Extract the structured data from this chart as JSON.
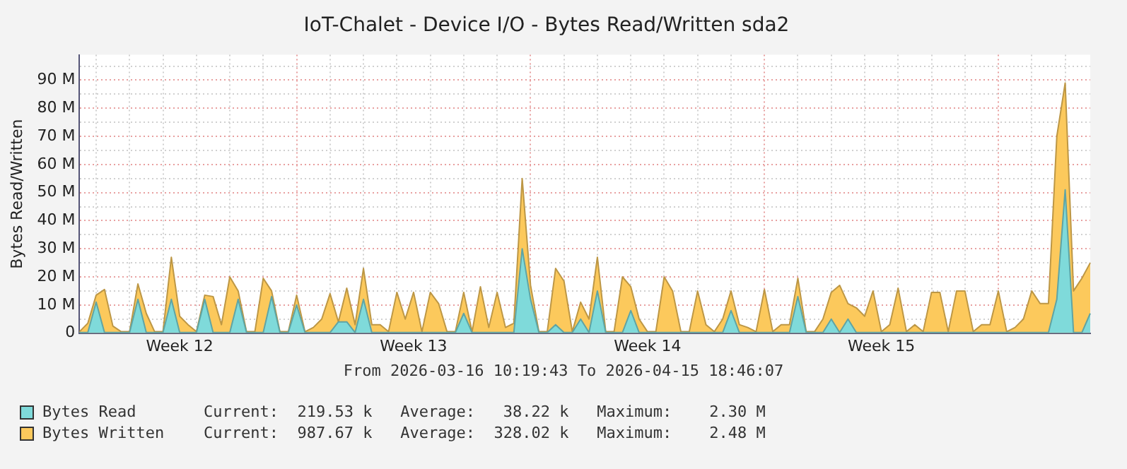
{
  "chart_data": {
    "type": "area",
    "title": "IoT-Chalet - Device I/O - Bytes Read/Written sda2",
    "ylabel": "Bytes Read/Written",
    "annotations": [
      "From 2026-03-16 10:19:43 To 2026-04-15 18:46:07",
      "Current:  219.53 k   Average:   38.22 k   Maximum:    2.30 M",
      "Current:  987.67 k   Average:  328.02 k   Maximum:    2.48 M"
    ],
    "categories": [
      null,
      null,
      null,
      null,
      null,
      null,
      null,
      null,
      null,
      null,
      null,
      null,
      "Week 12",
      null,
      null,
      null,
      null,
      null,
      null,
      null,
      null,
      null,
      null,
      null,
      null,
      null,
      null,
      null,
      null,
      null,
      null,
      null,
      null,
      null,
      null,
      null,
      null,
      null,
      null,
      null,
      "Week 13",
      null,
      null,
      null,
      null,
      null,
      null,
      null,
      null,
      null,
      null,
      null,
      null,
      null,
      null,
      null,
      null,
      null,
      null,
      null,
      null,
      null,
      null,
      null,
      null,
      null,
      null,
      null,
      "Week 14",
      null,
      null,
      null,
      null,
      null,
      null,
      null,
      null,
      null,
      null,
      null,
      null,
      null,
      null,
      null,
      null,
      null,
      null,
      null,
      null,
      null,
      null,
      null,
      null,
      null,
      null,
      null,
      "Week 15",
      null,
      null,
      null,
      null,
      null,
      null,
      null,
      null,
      null,
      null,
      null,
      null,
      null,
      null,
      null,
      null,
      null,
      null,
      null,
      null,
      null,
      null,
      null,
      null,
      null
    ],
    "ylim": [
      0,
      99
    ],
    "yticks": [
      0,
      {
        "value": 5,
        "label": null
      },
      {
        "value": 10,
        "label": "10 M"
      },
      {
        "value": 15,
        "label": null
      },
      {
        "value": 20,
        "label": "20 M"
      },
      {
        "value": 25,
        "label": null
      },
      {
        "value": 30,
        "label": "30 M"
      },
      {
        "value": 35,
        "label": null
      },
      {
        "value": 40,
        "label": "40 M"
      },
      {
        "value": 45,
        "label": null
      },
      {
        "value": 50,
        "label": "50 M"
      },
      {
        "value": 55,
        "label": null
      },
      {
        "value": 60,
        "label": "60 M"
      },
      {
        "value": 65,
        "label": null
      },
      {
        "value": 70,
        "label": "70 M"
      },
      {
        "value": 75,
        "label": null
      },
      {
        "value": 80,
        "label": "80 M"
      },
      {
        "value": 85,
        "label": null
      },
      {
        "value": 90,
        "label": "90 M"
      },
      {
        "value": 95,
        "label": null
      }
    ],
    "grid": true,
    "legend": "bottom",
    "series": [
      {
        "name": "Bytes Read",
        "color": "#7fdada",
        "values": [
          0.2,
          0.2,
          11,
          0.2,
          0.2,
          0.2,
          0.2,
          12,
          0.2,
          0.2,
          0.2,
          12,
          0.2,
          0.2,
          0.2,
          12,
          0.2,
          0.2,
          0.2,
          12,
          0.2,
          0.2,
          0.2,
          13,
          0.2,
          0.2,
          10,
          0.2,
          0.2,
          0.2,
          0.2,
          4,
          4,
          0.2,
          12,
          0.2,
          0.2,
          0.2,
          0.2,
          0.2,
          0.2,
          0.2,
          0.2,
          0.2,
          0.2,
          0.2,
          7,
          0.2,
          0.2,
          0.2,
          0.2,
          0.2,
          0.2,
          30,
          12,
          0.2,
          0.2,
          3,
          0.2,
          0.2,
          5,
          0.2,
          15,
          0.2,
          0.2,
          0.2,
          8,
          0.2,
          0.2,
          0.2,
          0.2,
          0.2,
          0.2,
          0.2,
          0.2,
          0.2,
          0.2,
          0.2,
          8,
          0.2,
          0.2,
          0.2,
          0.2,
          0.2,
          0.2,
          0.2,
          13,
          0.2,
          0.2,
          0.2,
          5,
          0.2,
          5,
          0.2,
          0.2,
          0.2,
          0.2,
          0.2,
          0.2,
          0.2,
          0.2,
          0.2,
          0.2,
          0.2,
          0.2,
          0.2,
          0.2,
          0.2,
          0.2,
          0.2,
          0.2,
          0.2,
          0.2,
          0.2,
          0.2,
          0.2,
          0.2,
          12,
          51,
          0.2,
          0.2,
          7
        ]
      },
      {
        "name": "Bytes Written",
        "color": "#fcc95c",
        "values": [
          0.5,
          3.5,
          13.5,
          15.5,
          2.5,
          0.5,
          0.5,
          17.5,
          7,
          0.5,
          0.5,
          27,
          6,
          3,
          0.5,
          13.5,
          13,
          3,
          20,
          15,
          0.5,
          0.5,
          19.5,
          15,
          0.5,
          0.5,
          13.5,
          0.5,
          2,
          5,
          14,
          4,
          16,
          3,
          23,
          3,
          3,
          0.5,
          14.5,
          5,
          14.5,
          0.5,
          14.5,
          10.5,
          0.5,
          0.5,
          14.5,
          0.5,
          16.5,
          2,
          14.5,
          2,
          3.5,
          55,
          17,
          0.5,
          0.5,
          23,
          18.5,
          0.5,
          11,
          5,
          27,
          0.5,
          0.5,
          20,
          16.5,
          5,
          0.5,
          0.5,
          20,
          15,
          0.5,
          0.5,
          15,
          3,
          0.5,
          5,
          15,
          3,
          2,
          0.5,
          15.5,
          0.5,
          3,
          3,
          19.5,
          0.5,
          0.5,
          5,
          14.5,
          17,
          10.5,
          9,
          6,
          15,
          0.5,
          3,
          16,
          0.5,
          3,
          0.5,
          14.5,
          14.5,
          0.5,
          15,
          15,
          0.5,
          3,
          3,
          15,
          0.5,
          2,
          5,
          15,
          10.5,
          10.5,
          70,
          89,
          15,
          19.5,
          25
        ]
      }
    ]
  }
}
